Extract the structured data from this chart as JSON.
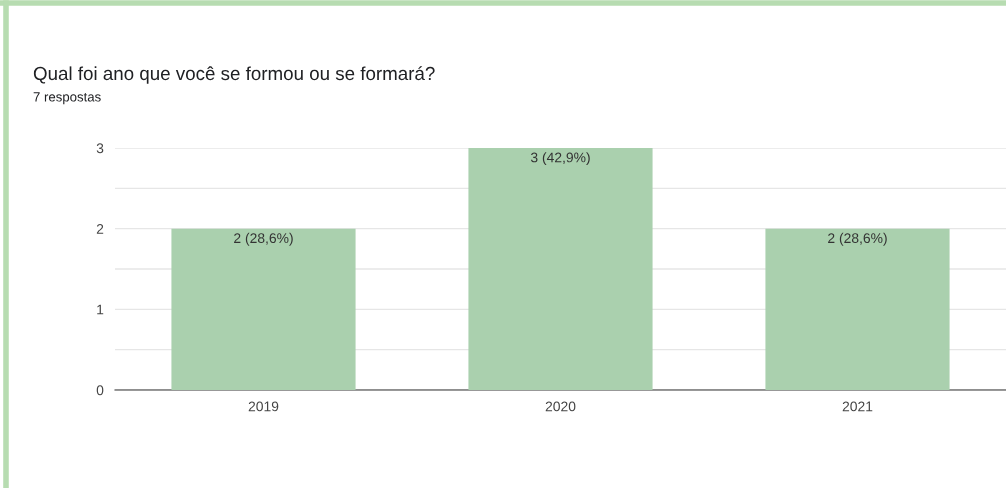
{
  "chart_data": {
    "type": "bar",
    "title": "Qual foi ano que você se formou ou se formará?",
    "subtitle": "7 respostas",
    "categories": [
      "2019",
      "2020",
      "2021"
    ],
    "values": [
      2,
      3,
      2
    ],
    "color": "#aad0ae",
    "value_labels": [
      "2 (28,6%)",
      "3 (42,9%)",
      "2 (28,6%)"
    ],
    "ylim": [
      0,
      3
    ],
    "yticks": [
      0,
      {
        "value": 0.5,
        "label": null
      },
      1,
      {
        "value": 1.5,
        "label": null
      },
      2,
      {
        "value": 2.5,
        "label": null
      },
      3
    ],
    "grid": "y",
    "legend": false
  }
}
